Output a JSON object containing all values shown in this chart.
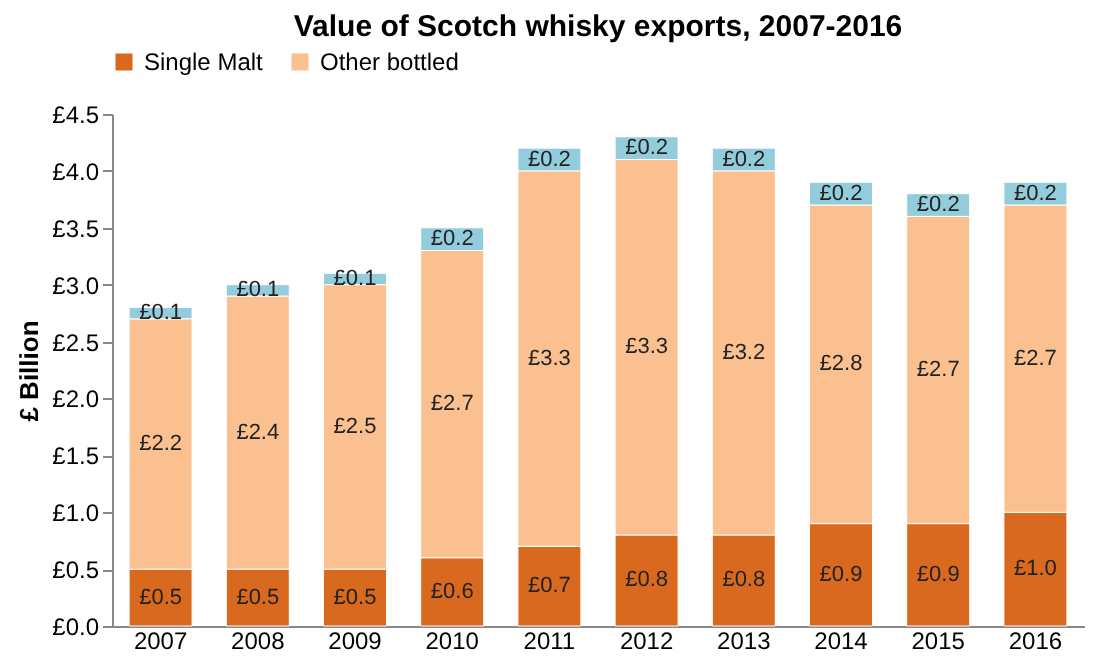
{
  "chart_data": {
    "type": "bar",
    "title": "Value of Scotch whisky exports, 2007-2016",
    "ylabel": "£ Billion",
    "stacked": true,
    "legend": "top",
    "grid": false,
    "categories": [
      "2007",
      "2008",
      "2009",
      "2010",
      "2011",
      "2012",
      "2013",
      "2014",
      "2015",
      "2016"
    ],
    "series": [
      {
        "name": "Single Malt",
        "color": "#d9691f",
        "values": [
          0.5,
          0.5,
          0.5,
          0.6,
          0.7,
          0.8,
          0.8,
          0.9,
          0.9,
          1.0
        ],
        "value_labels": [
          "£0.5",
          "£0.5",
          "£0.5",
          "£0.6",
          "£0.7",
          "£0.8",
          "£0.8",
          "£0.9",
          "£0.9",
          "£1.0"
        ]
      },
      {
        "name": "Other bottled",
        "color": "#fac090",
        "values": [
          2.2,
          2.4,
          2.5,
          2.7,
          3.3,
          3.3,
          3.2,
          2.8,
          2.7,
          2.7
        ],
        "value_labels": [
          "£2.2",
          "£2.4",
          "£2.5",
          "£2.7",
          "£3.3",
          "£3.3",
          "£3.2",
          "£2.8",
          "£2.7",
          "£2.7"
        ]
      },
      {
        "color": "#93cddd",
        "values": [
          0.1,
          0.1,
          0.1,
          0.2,
          0.2,
          0.2,
          0.2,
          0.2,
          0.2,
          0.2
        ],
        "value_labels": [
          "£0.1",
          "£0.1",
          "£0.1",
          "£0.2",
          "£0.2",
          "£0.2",
          "£0.2",
          "£0.2",
          "£0.2",
          "£0.2"
        ]
      }
    ],
    "ylim": [
      0,
      4.5
    ],
    "yticks": [
      {
        "value": 0,
        "label": "£0.0"
      },
      {
        "value": 0.5,
        "label": "£0.5"
      },
      {
        "value": 1,
        "label": "£1.0"
      },
      {
        "value": 1.5,
        "label": "£1.5"
      },
      {
        "value": 2,
        "label": "£2.0"
      },
      {
        "value": 2.5,
        "label": "£2.5"
      },
      {
        "value": 3,
        "label": "£3.0"
      },
      {
        "value": 3.5,
        "label": "£3.5"
      },
      {
        "value": 4,
        "label": "£4.0"
      },
      {
        "value": 4.5,
        "label": "£4.5"
      }
    ]
  }
}
